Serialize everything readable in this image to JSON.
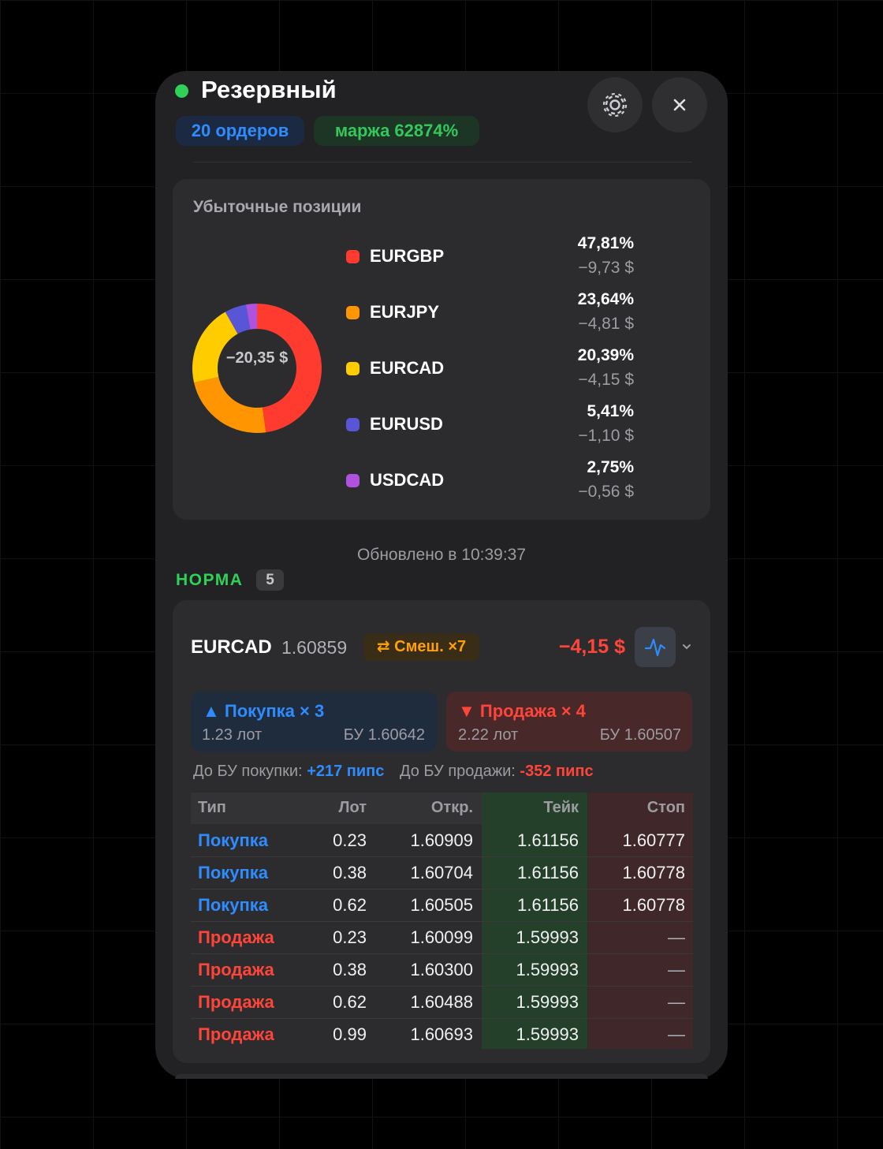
{
  "header": {
    "title": "Резервный",
    "orders_pill": "20 ордеров",
    "margin_pill": "маржа 62874%"
  },
  "chart_data": {
    "type": "pie",
    "title": "Убыточные позиции",
    "center_label": "−20,35 $",
    "categories": [
      "EURGBP",
      "EURJPY",
      "EURCAD",
      "EURUSD",
      "USDCAD"
    ],
    "values": [
      47.81,
      23.64,
      20.39,
      5.41,
      2.75
    ],
    "value_labels": [
      "47,81%",
      "23,64%",
      "20,39%",
      "5,41%",
      "2,75%"
    ],
    "amounts": [
      "−9,73 $",
      "−4,81 $",
      "−4,15 $",
      "−1,10 $",
      "−0,56 $"
    ],
    "colors": [
      "#ff3b30",
      "#ff9500",
      "#ffcc00",
      "#5856d6",
      "#af52de"
    ]
  },
  "updated": "Обновлено в 10:39:37",
  "section": {
    "name": "НОРМА",
    "count": "5"
  },
  "position": {
    "symbol": "EURCAD",
    "price": "1.60859",
    "mode_pill": "⇄ Смеш. ×7",
    "pnl": "−4,15 $",
    "buy": {
      "title": "▲ Покупка × 3",
      "lot": "1.23 лот",
      "be": "БУ 1.60642"
    },
    "sell": {
      "title": "▼ Продажа × 4",
      "lot": "2.22 лот",
      "be": "БУ 1.60507"
    },
    "to_be_buy_label": "До БУ покупки:",
    "to_be_buy_value": "+217 пипс",
    "to_be_sell_label": "До БУ продажи:",
    "to_be_sell_value": "-352 пипс"
  },
  "table": {
    "columns": [
      "Тип",
      "Лот",
      "Откр.",
      "Тейк",
      "Стоп"
    ],
    "rows": [
      {
        "color": "#2f8cff",
        "cells": [
          "Покупка",
          "0.23",
          "1.60909",
          "1.61156",
          "1.60777"
        ]
      },
      {
        "color": "#2f8cff",
        "cells": [
          "Покупка",
          "0.38",
          "1.60704",
          "1.61156",
          "1.60778"
        ]
      },
      {
        "color": "#2f8cff",
        "cells": [
          "Покупка",
          "0.62",
          "1.60505",
          "1.61156",
          "1.60778"
        ]
      },
      {
        "color": "#ff453a",
        "cells": [
          "Продажа",
          "0.23",
          "1.60099",
          "1.59993",
          "—"
        ]
      },
      {
        "color": "#ff453a",
        "cells": [
          "Продажа",
          "0.38",
          "1.60300",
          "1.59993",
          "—"
        ]
      },
      {
        "color": "#ff453a",
        "cells": [
          "Продажа",
          "0.62",
          "1.60488",
          "1.59993",
          "—"
        ]
      },
      {
        "color": "#ff453a",
        "cells": [
          "Продажа",
          "0.99",
          "1.60693",
          "1.59993",
          "—"
        ]
      }
    ]
  }
}
